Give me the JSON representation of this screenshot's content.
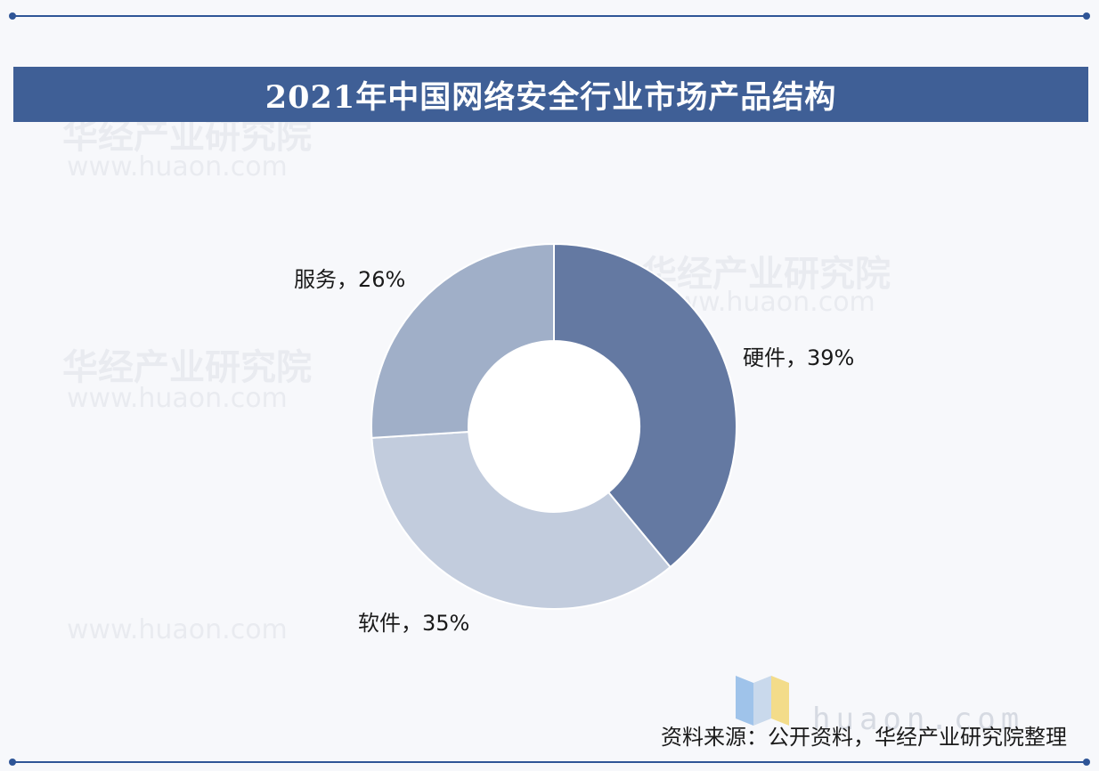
{
  "title": "2021年中国网络安全行业市场产品结构",
  "source": "资料来源：公开资料，华经产业研究院整理",
  "watermark": {
    "brand": "华经产业研究院",
    "site": "www.huaon.com",
    "site_short": "huaon.com"
  },
  "colors": {
    "title_bar": "#3f5f96",
    "rule": "#2f5597",
    "hardware": "#6479a2",
    "software": "#c2ccdd",
    "service": "#a0afc8"
  },
  "chart_data": {
    "type": "pie",
    "variant": "donut",
    "title": "2021年中国网络安全行业市场产品结构",
    "slices": [
      {
        "name": "硬件",
        "value": 39,
        "label": "硬件，39%",
        "color": "#6479a2"
      },
      {
        "name": "软件",
        "value": 35,
        "label": "软件，35%",
        "color": "#c2ccdd"
      },
      {
        "name": "服务",
        "value": 26,
        "label": "服务，26%",
        "color": "#a0afc8"
      }
    ],
    "start_angle": "12 o'clock",
    "direction": "clockwise",
    "legend": "none"
  }
}
